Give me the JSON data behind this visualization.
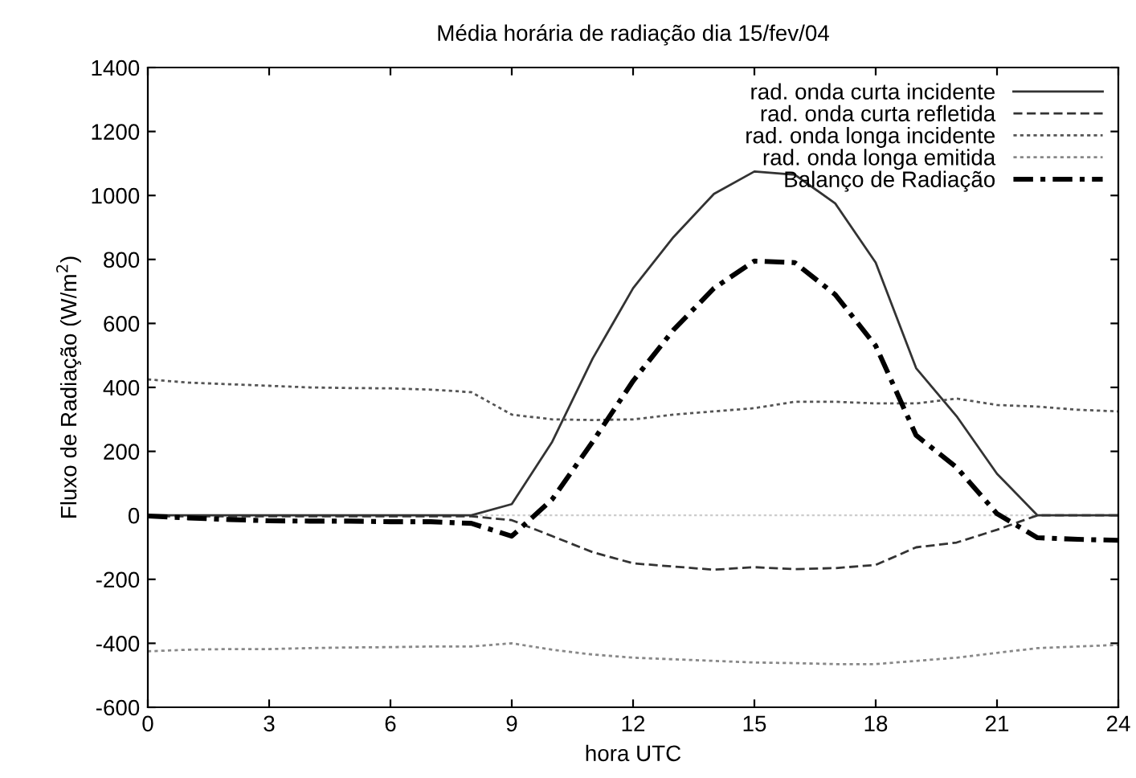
{
  "chart_data": {
    "type": "line",
    "title": "Média horária de radiação dia 15/fev/04",
    "xlabel": "hora UTC",
    "ylabel": "Fluxo de Radiação (W/m$^{2}$)",
    "x": [
      0,
      1,
      2,
      3,
      4,
      5,
      6,
      7,
      8,
      9,
      10,
      11,
      12,
      13,
      14,
      15,
      16,
      17,
      18,
      19,
      20,
      21,
      22,
      23,
      24
    ],
    "series": [
      {
        "name": "rad. onda curta incidente",
        "color": "#333333",
        "line_style": "solid",
        "values": [
          0,
          0,
          0,
          0,
          0,
          0,
          0,
          0,
          0,
          35,
          230,
          490,
          710,
          870,
          1005,
          1075,
          1065,
          975,
          790,
          460,
          310,
          130,
          0,
          0,
          0
        ]
      },
      {
        "name": "rad. onda curta refletida",
        "color": "#333333",
        "line_style": "dashed",
        "values": [
          -3,
          -3,
          -3,
          -3,
          -3,
          -3,
          -3,
          -3,
          -3,
          -15,
          -65,
          -115,
          -150,
          -160,
          -170,
          -162,
          -168,
          -165,
          -155,
          -100,
          -85,
          -45,
          0,
          0,
          0
        ]
      },
      {
        "name": "rad. onda longa incidente",
        "color": "#555555",
        "line_style": "dotted",
        "values": [
          425,
          415,
          410,
          405,
          400,
          398,
          397,
          393,
          385,
          315,
          300,
          298,
          300,
          315,
          325,
          335,
          355,
          355,
          350,
          350,
          365,
          345,
          340,
          330,
          325
        ]
      },
      {
        "name": "rad. onda longa emitida",
        "color": "#888888",
        "line_style": "dotted",
        "values": [
          -425,
          -420,
          -418,
          -418,
          -415,
          -413,
          -412,
          -410,
          -410,
          -400,
          -420,
          -435,
          -445,
          -450,
          -455,
          -460,
          -462,
          -465,
          -465,
          -455,
          -445,
          -430,
          -415,
          -410,
          -405
        ]
      },
      {
        "name": "Balanço de Radiação",
        "color": "#000000",
        "line_style": "dashdot",
        "values": [
          -2,
          -8,
          -13,
          -17,
          -18,
          -18,
          -20,
          -20,
          -25,
          -65,
          50,
          230,
          420,
          580,
          710,
          795,
          790,
          690,
          530,
          250,
          150,
          5,
          -70,
          -75,
          -78
        ]
      }
    ],
    "ref_lines": [
      {
        "axis": "y",
        "value": 0,
        "color": "#cccccc",
        "line_style": "dotted"
      }
    ],
    "xlim": [
      0,
      24
    ],
    "xticks": [
      0,
      3,
      6,
      9,
      12,
      15,
      18,
      21,
      24
    ],
    "ylim": [
      -600,
      1400
    ],
    "yticks": [
      -600,
      -400,
      -200,
      0,
      200,
      400,
      600,
      800,
      1000,
      1200,
      1400
    ],
    "grid": false,
    "legend": "top right"
  }
}
